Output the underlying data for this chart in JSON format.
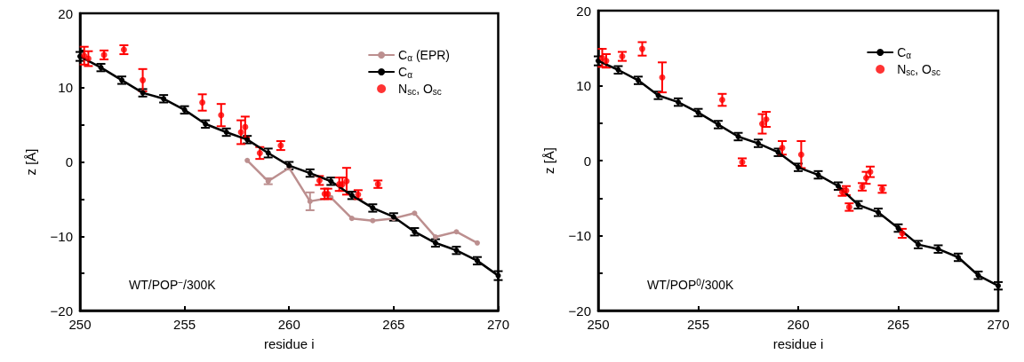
{
  "chart_data": [
    {
      "type": "line",
      "xlabel": "residue i",
      "ylabel": "z [Å]",
      "annotations": [
        "WT/POP$^{−}$/300K"
      ],
      "xlim": [
        250,
        270
      ],
      "xticks": [
        250,
        255,
        260,
        265,
        270
      ],
      "ylim": [
        -20,
        20
      ],
      "yticks": [
        -20,
        {
          "value": -15,
          "label": null
        },
        -10,
        {
          "value": -5,
          "label": null
        },
        0,
        {
          "value": 5,
          "label": null
        },
        10,
        {
          "value": 15,
          "label": null
        },
        20
      ],
      "grid": false,
      "legend": "top right",
      "marker": "circle",
      "line_style": "solid",
      "series": [
        {
          "name": "C$_{α}$ (EPR)",
          "color": "#bc8f8f",
          "x": [
            258,
            259,
            260,
            261,
            262,
            263,
            264,
            265,
            266,
            267,
            268,
            269
          ],
          "values": [
            0.2,
            -2.6,
            -0.8,
            -5.3,
            -4.8,
            -7.6,
            -7.9,
            -7.6,
            -6.9,
            -10.1,
            -9.4,
            -10.9
          ],
          "errors": [
            null,
            0.4,
            null,
            1.2,
            null,
            null,
            null,
            null,
            null,
            null,
            null,
            null
          ]
        },
        {
          "name": "C$_{α}$",
          "color": "#000000",
          "x": [
            250,
            251,
            252,
            253,
            254,
            255,
            256,
            257,
            258,
            259,
            260,
            261,
            262,
            263,
            264,
            265,
            266,
            267,
            268,
            269,
            270
          ],
          "values": [
            14.2,
            12.7,
            11.0,
            9.3,
            8.5,
            7.0,
            5.1,
            4.0,
            3.0,
            1.2,
            -0.5,
            -1.5,
            -2.6,
            -4.5,
            -6.2,
            -7.4,
            -9.4,
            -10.9,
            -11.9,
            -13.3,
            -15.3
          ],
          "errors": [
            0.6,
            0.5,
            0.5,
            0.5,
            0.5,
            0.5,
            0.5,
            0.5,
            0.5,
            0.6,
            0.5,
            0.5,
            0.5,
            0.5,
            0.5,
            0.5,
            0.5,
            0.5,
            0.5,
            0.5,
            0.6
          ]
        },
        {
          "name": "N$_{sc}$, O$_{sc}$",
          "type": "scatter",
          "color": "#ff0000",
          "x": [
            250.2,
            250.4,
            251.15,
            252.1,
            253.0,
            255.85,
            256.75,
            257.7,
            257.9,
            258.6,
            259.6,
            261.45,
            261.7,
            261.85,
            262.4,
            262.55,
            262.75,
            263.3,
            264.25
          ],
          "values": [
            14.3,
            13.9,
            14.4,
            15.1,
            11.0,
            8.0,
            6.3,
            4.0,
            4.7,
            1.2,
            2.2,
            -2.5,
            -4.3,
            -4.3,
            -3.0,
            -3.0,
            -2.6,
            -4.4,
            -3.0
          ],
          "errors": [
            1.2,
            1.0,
            0.6,
            0.6,
            1.5,
            1.1,
            1.5,
            1.6,
            1.4,
            0.8,
            0.6,
            0.6,
            0.7,
            0.7,
            0.9,
            0.9,
            1.8,
            0.6,
            0.5
          ]
        }
      ]
    },
    {
      "type": "line",
      "xlabel": "residue i",
      "ylabel": "z [Å]",
      "annotations": [
        "WT/POP$^{0}$/300K"
      ],
      "xlim": [
        250,
        270
      ],
      "xticks": [
        250,
        255,
        260,
        265,
        270
      ],
      "ylim": [
        -20,
        20
      ],
      "yticks": [
        -20,
        {
          "value": -15,
          "label": null
        },
        -10,
        {
          "value": -5,
          "label": null
        },
        0,
        {
          "value": 5,
          "label": null
        },
        10,
        {
          "value": 15,
          "label": null
        },
        20
      ],
      "grid": false,
      "legend": "top right",
      "marker": "circle",
      "line_style": "solid",
      "series": [
        {
          "name": "C$_{α}$",
          "color": "#000000",
          "x": [
            250,
            251,
            252,
            253,
            254,
            255,
            256,
            257,
            258,
            259,
            260,
            261,
            262,
            263,
            264,
            265,
            266,
            267,
            268,
            269,
            270
          ],
          "values": [
            13.3,
            12.1,
            10.7,
            8.7,
            7.8,
            6.4,
            4.8,
            3.2,
            2.3,
            1.1,
            -0.9,
            -1.9,
            -3.4,
            -5.9,
            -6.9,
            -9.0,
            -11.2,
            -11.8,
            -12.9,
            -15.3,
            -16.7
          ],
          "errors": [
            0.6,
            0.5,
            0.5,
            0.5,
            0.5,
            0.5,
            0.5,
            0.5,
            0.5,
            0.5,
            0.5,
            0.5,
            0.5,
            0.5,
            0.5,
            0.5,
            0.5,
            0.5,
            0.5,
            0.5,
            0.5
          ]
        },
        {
          "name": "N$_{sc}$, O$_{sc}$",
          "type": "scatter",
          "color": "#ff0000",
          "x": [
            250.2,
            250.4,
            251.2,
            252.2,
            253.2,
            256.2,
            257.2,
            258.2,
            258.4,
            259.2,
            260.15,
            262.2,
            262.4,
            262.55,
            263.2,
            263.4,
            263.6,
            264.2,
            265.2
          ],
          "values": [
            13.7,
            13.3,
            13.9,
            14.9,
            11.1,
            8.1,
            -0.2,
            4.9,
            5.5,
            1.7,
            0.8,
            -4.2,
            -4.0,
            -6.2,
            -3.5,
            -2.3,
            -1.5,
            -3.8,
            -9.7
          ],
          "errors": [
            1.2,
            0.9,
            0.6,
            0.9,
            2.0,
            0.8,
            0.5,
            1.3,
            1.0,
            0.9,
            1.8,
            0.5,
            0.6,
            0.5,
            0.5,
            0.8,
            0.7,
            0.5,
            0.6
          ]
        }
      ]
    }
  ]
}
